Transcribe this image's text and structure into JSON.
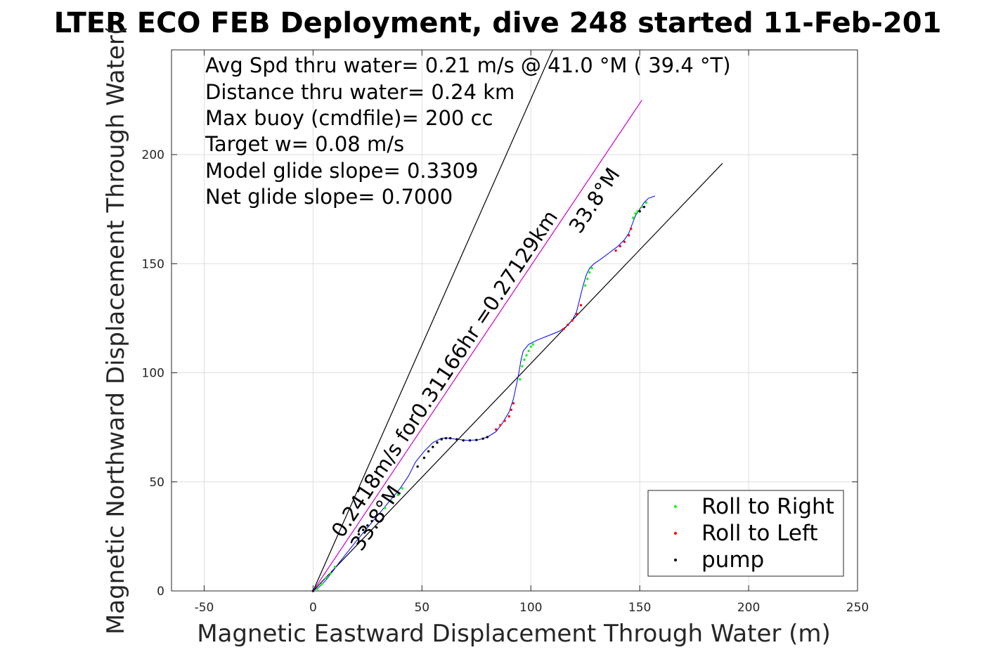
{
  "chart_data": {
    "type": "scatter",
    "title": "LTER ECO FEB Deployment, dive 248 started 11-Feb-201",
    "xlabel": "Magnetic Eastward Displacement Through Water (m)",
    "ylabel": "Magnetic Northward Displacement Through Water(",
    "xlim": [
      -65,
      250
    ],
    "ylim": [
      0,
      248
    ],
    "xticks": [
      -50,
      0,
      50,
      100,
      150,
      200,
      250
    ],
    "yticks": [
      0,
      50,
      100,
      150,
      200
    ],
    "xtick_labels": [
      "-50",
      "0",
      "50",
      "100",
      "150",
      "200",
      "250"
    ],
    "ytick_labels": [
      "0",
      "50",
      "100",
      "150",
      "200"
    ],
    "grid": true,
    "info_lines": [
      "Avg Spd thru water=  0.21 m/s @  41.0 °M ( 39.4 °T)",
      "Distance thru water=  0.24 km",
      "Max buoy (cmdfile)= 200 cc",
      "Target w= 0.08 m/s",
      "Model glide slope= 0.3309",
      "Net glide slope= 0.7000"
    ],
    "annotations": {
      "main_line_label": "0.2418m/s for0.31166hr =0.27129km",
      "heading_label_top": "33.8°M",
      "heading_label_bottom": "33.8°M"
    },
    "reference_lines": [
      {
        "name": "steep",
        "color": "#000000",
        "x": [
          0,
          110
        ],
        "y": [
          0,
          248
        ]
      },
      {
        "name": "course",
        "color": "#cc00cc",
        "x": [
          0,
          151
        ],
        "y": [
          0,
          225
        ]
      },
      {
        "name": "shallow",
        "color": "#000000",
        "x": [
          0,
          188
        ],
        "y": [
          0,
          196
        ]
      }
    ],
    "track": {
      "color": "#0000ff",
      "x": [
        0,
        3,
        6,
        9,
        12,
        16,
        20,
        25,
        30,
        35,
        40,
        44,
        47,
        51,
        55,
        59,
        62,
        66,
        71,
        76,
        80,
        84,
        87,
        90,
        92,
        93.5,
        94.5,
        95,
        95.5,
        96.5,
        99,
        103,
        108,
        113,
        116,
        119,
        121,
        122.5,
        124,
        125.5,
        127,
        129,
        132,
        136,
        140,
        143,
        145,
        146.5,
        148,
        150,
        152,
        154,
        157
      ],
      "y": [
        0,
        2,
        5,
        9,
        13,
        18,
        23,
        29,
        35,
        41,
        47,
        53,
        59,
        64,
        68,
        70,
        70,
        69.5,
        69,
        69.3,
        70.5,
        73,
        77,
        82,
        88,
        95,
        100,
        103,
        106,
        110,
        113,
        115,
        117,
        119,
        121,
        124,
        128,
        134,
        140,
        145,
        148,
        150,
        152,
        155,
        158,
        161,
        164,
        168,
        172,
        175,
        178,
        180,
        181
      ]
    },
    "series": [
      {
        "name": "Roll to Right",
        "color": "#00ff00",
        "x": [
          2,
          4,
          6,
          8,
          10,
          33,
          36,
          39,
          41,
          95,
          96,
          97,
          98,
          99,
          100,
          101,
          125,
          126,
          127,
          128,
          147,
          148,
          149,
          151,
          153
        ],
        "y": [
          1,
          3,
          6,
          8,
          11,
          38,
          41,
          44,
          47,
          97,
          103,
          106,
          108,
          110,
          112,
          113,
          140,
          143,
          146,
          148,
          171,
          173,
          174,
          176,
          178
        ]
      },
      {
        "name": "Roll to Left",
        "color": "#ff0000",
        "x": [
          0,
          84,
          86,
          88,
          90,
          91,
          92,
          115,
          117,
          119,
          121,
          123,
          139,
          141,
          143,
          145,
          146
        ],
        "y": [
          0,
          74,
          76,
          78,
          80,
          83,
          86,
          120,
          122,
          124,
          127,
          131,
          156,
          158,
          160,
          163,
          166
        ]
      },
      {
        "name": "pump",
        "color": "#000000",
        "x": [
          0,
          21,
          23,
          25,
          27,
          48,
          51,
          53,
          55,
          57,
          59,
          61,
          63,
          66,
          69,
          72,
          75,
          78,
          80,
          150,
          152
        ],
        "y": [
          0,
          26,
          28,
          30,
          32,
          57,
          61,
          64,
          66,
          68,
          69.5,
          70,
          70,
          69.5,
          69,
          69,
          69.2,
          69.8,
          70.5,
          174,
          176
        ]
      }
    ]
  }
}
